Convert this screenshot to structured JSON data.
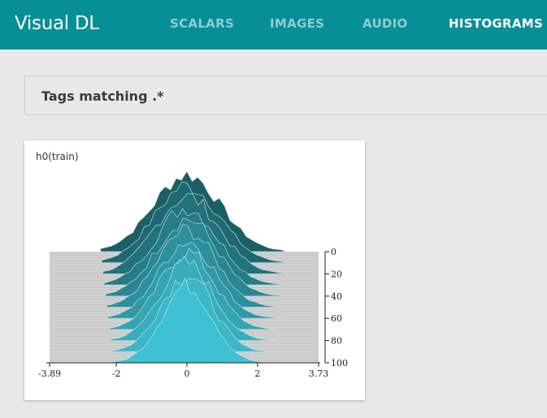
{
  "header": {
    "logo": "Visual DL",
    "tabs": [
      {
        "label": "SCALARS",
        "active": false
      },
      {
        "label": "IMAGES",
        "active": false
      },
      {
        "label": "AUDIO",
        "active": false
      },
      {
        "label": "HISTOGRAMS",
        "active": true
      }
    ],
    "colors": {
      "bar": "#078f98",
      "active_tab": "#ffffff"
    }
  },
  "filter": {
    "label": "Tags matching .*"
  },
  "card": {
    "title": "h0(train)"
  },
  "chart_data": {
    "type": "histogram-ridgeline",
    "tag": "h0(train)",
    "x_range": [
      -3.89,
      3.73
    ],
    "x_ticks": [
      "-3.89",
      "-2",
      "0",
      "2",
      "3.73"
    ],
    "x_tick_values": [
      -3.89,
      -2,
      0,
      2,
      3.73
    ],
    "step_range": [
      0,
      100
    ],
    "y_ticks": [
      "0",
      "20",
      "40",
      "60",
      "80",
      "100"
    ],
    "y_tick_values": [
      0,
      20,
      40,
      60,
      80,
      100
    ],
    "step_interval": 10,
    "color_old": "#1b5e66",
    "color_new": "#3ec1d3"
  }
}
